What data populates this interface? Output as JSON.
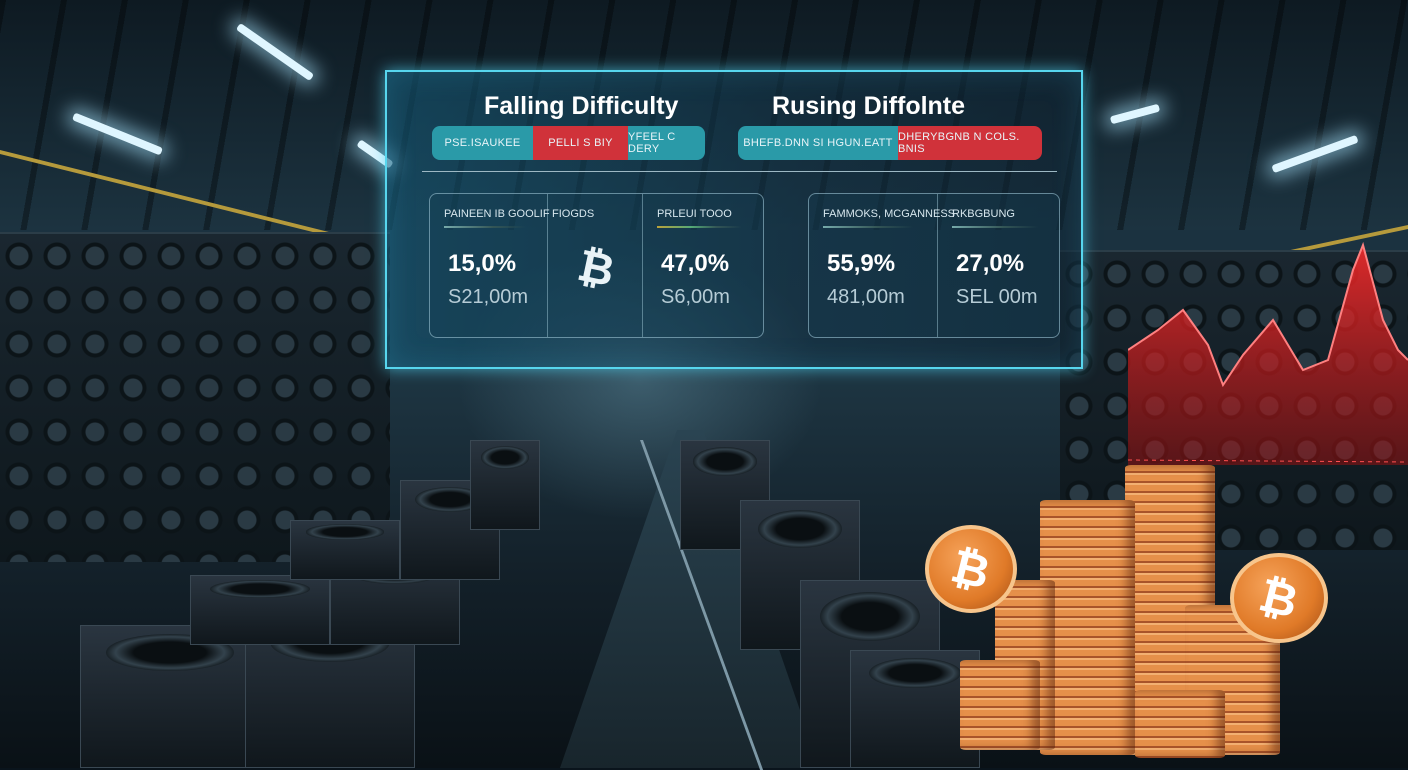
{
  "panel": {
    "left": {
      "title": "Falling Difficulty",
      "tags": [
        "PSE.ISAUKEE",
        "PELLI S BIY",
        "YFEEL C DERY"
      ]
    },
    "right": {
      "title": "Rusing Diffolnte",
      "tags": [
        "BHEFB.DNN SI HGUN.EATT",
        "DHERYBGNB N COLS. BNIS"
      ]
    },
    "cards": [
      {
        "columns": [
          {
            "label": "PAINEEN IB GOOLIF",
            "percent": "15,0%",
            "amount": "S21,00m"
          },
          {
            "label": "FIOGDS",
            "icon": "bitcoin-icon"
          },
          {
            "label": "PRLEUI TOOO",
            "percent": "47,0%",
            "amount": "S6,00m"
          }
        ]
      },
      {
        "columns": [
          {
            "label": "FAMMOKS, MCGANNESS",
            "percent": "55,9%",
            "amount": "481,00m"
          },
          {
            "label": "RKBGBUNG",
            "percent": "27,0%",
            "amount": "SEL 00m"
          }
        ]
      }
    ]
  },
  "colors": {
    "hud_border": "#57d6ee",
    "teal": "#2a9aa8",
    "red": "#d0323a",
    "coin": "#e07a28"
  }
}
